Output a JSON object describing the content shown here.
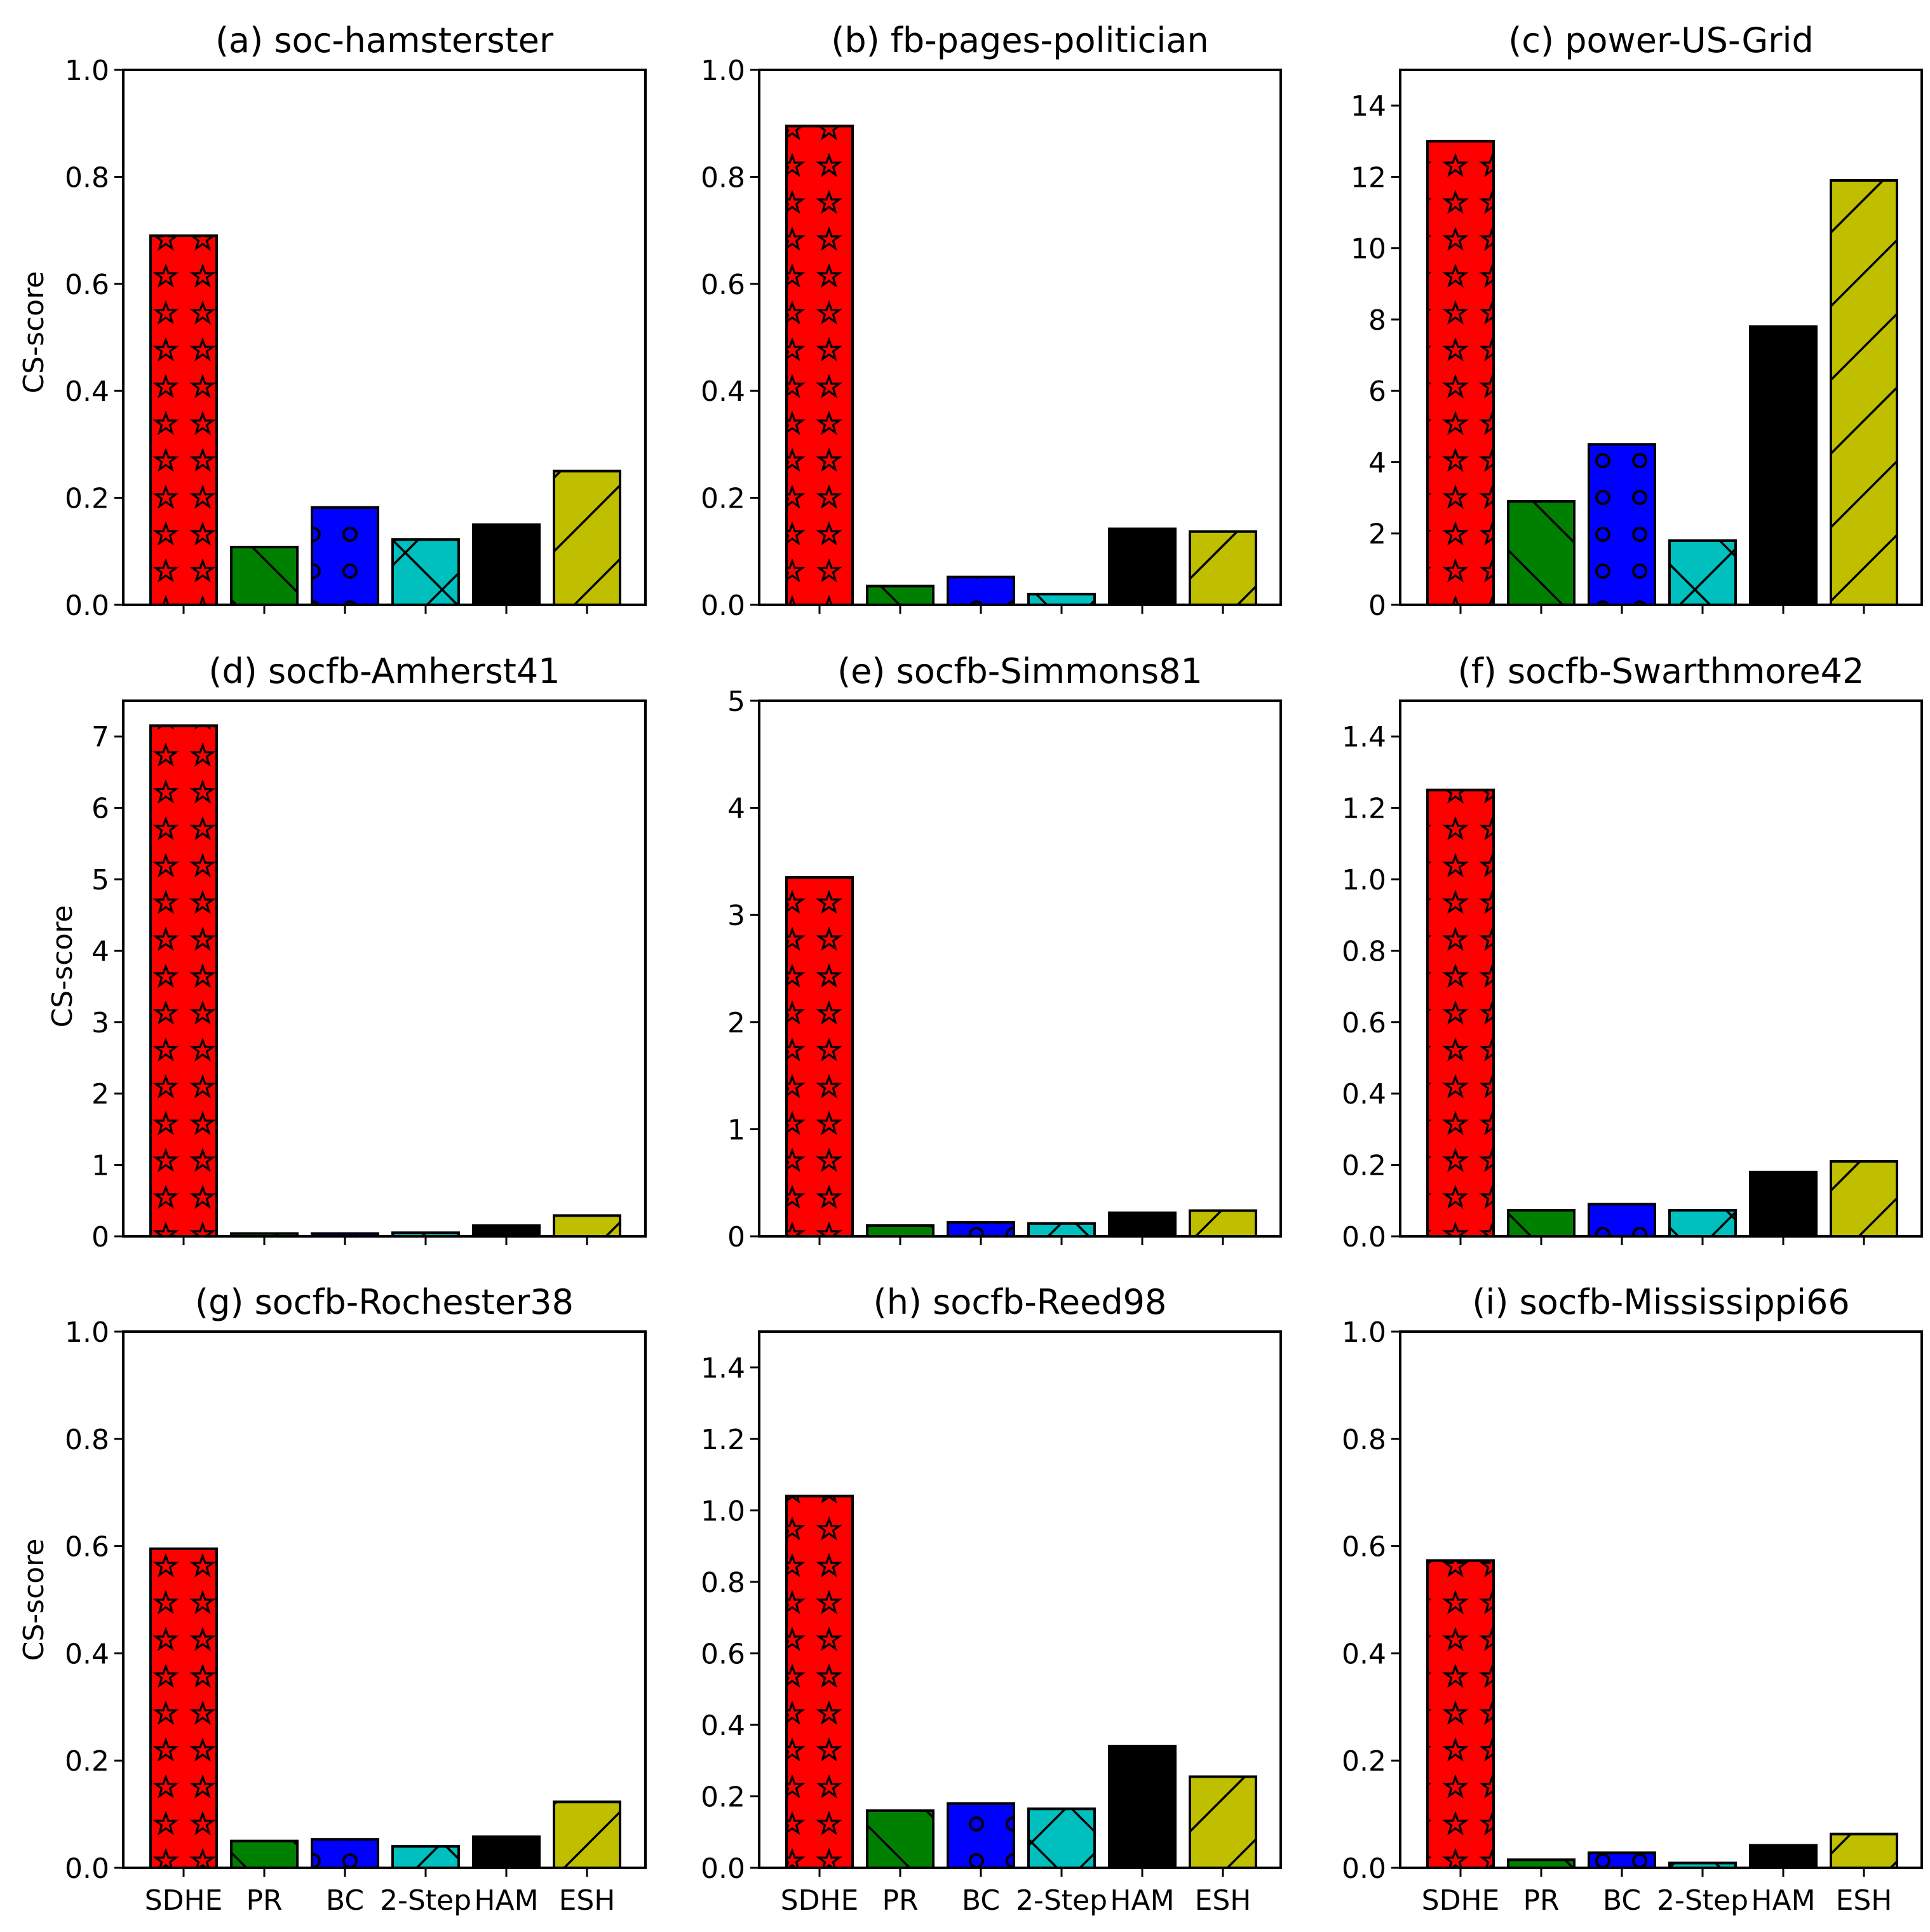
{
  "figure": {
    "ylabel": "CS-score",
    "bar_labels": [
      "SDHE",
      "PR",
      "BC",
      "2-Step",
      "HAM",
      "ESH"
    ],
    "series_colors": {
      "SDHE": "#ff0000",
      "PR": "#008000",
      "BC": "#0000ff",
      "2-Step": "#00bfbf",
      "HAM": "#000000",
      "ESH": "#bfbf00"
    },
    "series_hatches": {
      "SDHE": "star",
      "PR": "backslash",
      "BC": "circle",
      "2-Step": "cross",
      "HAM": "none",
      "ESH": "slash"
    }
  },
  "chart_data": [
    {
      "type": "bar",
      "title": "(a) soc-hamsterster",
      "categories": [
        "SDHE",
        "PR",
        "BC",
        "2-Step",
        "HAM",
        "ESH"
      ],
      "values": [
        0.69,
        0.108,
        0.182,
        0.122,
        0.15,
        0.25
      ],
      "ylim": [
        0,
        1.0
      ],
      "yticks": [
        0.0,
        0.2,
        0.4,
        0.6,
        0.8,
        1.0
      ],
      "ytick_labels": [
        "0.0",
        "0.2",
        "0.4",
        "0.6",
        "0.8",
        "1.0"
      ],
      "xlabel": "",
      "ylabel": "CS-score"
    },
    {
      "type": "bar",
      "title": "(b) fb-pages-politician",
      "categories": [
        "SDHE",
        "PR",
        "BC",
        "2-Step",
        "HAM",
        "ESH"
      ],
      "values": [
        0.895,
        0.035,
        0.052,
        0.02,
        0.142,
        0.137
      ],
      "ylim": [
        0,
        1.0
      ],
      "yticks": [
        0.0,
        0.2,
        0.4,
        0.6,
        0.8,
        1.0
      ],
      "ytick_labels": [
        "0.0",
        "0.2",
        "0.4",
        "0.6",
        "0.8",
        "1.0"
      ],
      "xlabel": "",
      "ylabel": ""
    },
    {
      "type": "bar",
      "title": "(c) power-US-Grid",
      "categories": [
        "SDHE",
        "PR",
        "BC",
        "2-Step",
        "HAM",
        "ESH"
      ],
      "values": [
        13.0,
        2.9,
        4.5,
        1.8,
        7.8,
        11.9
      ],
      "ylim": [
        0,
        15
      ],
      "yticks": [
        0,
        2,
        4,
        6,
        8,
        10,
        12,
        14
      ],
      "ytick_labels": [
        "0",
        "2",
        "4",
        "6",
        "8",
        "10",
        "12",
        "14"
      ],
      "xlabel": "",
      "ylabel": ""
    },
    {
      "type": "bar",
      "title": "(d) socfb-Amherst41",
      "categories": [
        "SDHE",
        "PR",
        "BC",
        "2-Step",
        "HAM",
        "ESH"
      ],
      "values": [
        7.15,
        0.04,
        0.04,
        0.05,
        0.15,
        0.29
      ],
      "ylim": [
        0,
        7.5
      ],
      "yticks": [
        0,
        1,
        2,
        3,
        4,
        5,
        6,
        7
      ],
      "ytick_labels": [
        "0",
        "1",
        "2",
        "3",
        "4",
        "5",
        "6",
        "7"
      ],
      "xlabel": "",
      "ylabel": "CS-score"
    },
    {
      "type": "bar",
      "title": "(e) socfb-Simmons81",
      "categories": [
        "SDHE",
        "PR",
        "BC",
        "2-Step",
        "HAM",
        "ESH"
      ],
      "values": [
        3.35,
        0.1,
        0.13,
        0.12,
        0.22,
        0.24
      ],
      "ylim": [
        0,
        5
      ],
      "yticks": [
        0,
        1,
        2,
        3,
        4,
        5
      ],
      "ytick_labels": [
        "0",
        "1",
        "2",
        "3",
        "4",
        "5"
      ],
      "xlabel": "",
      "ylabel": ""
    },
    {
      "type": "bar",
      "title": "(f) socfb-Swarthmore42",
      "categories": [
        "SDHE",
        "PR",
        "BC",
        "2-Step",
        "HAM",
        "ESH"
      ],
      "values": [
        1.25,
        0.073,
        0.09,
        0.073,
        0.18,
        0.21
      ],
      "ylim": [
        0,
        1.5
      ],
      "yticks": [
        0.0,
        0.2,
        0.4,
        0.6,
        0.8,
        1.0,
        1.2,
        1.4
      ],
      "ytick_labels": [
        "0.0",
        "0.2",
        "0.4",
        "0.6",
        "0.8",
        "1.0",
        "1.2",
        "1.4"
      ],
      "xlabel": "",
      "ylabel": ""
    },
    {
      "type": "bar",
      "title": "(g) socfb-Rochester38",
      "categories": [
        "SDHE",
        "PR",
        "BC",
        "2-Step",
        "HAM",
        "ESH"
      ],
      "values": [
        0.595,
        0.05,
        0.053,
        0.04,
        0.058,
        0.123
      ],
      "ylim": [
        0,
        1.0
      ],
      "yticks": [
        0.0,
        0.2,
        0.4,
        0.6,
        0.8,
        1.0
      ],
      "ytick_labels": [
        "0.0",
        "0.2",
        "0.4",
        "0.6",
        "0.8",
        "1.0"
      ],
      "xlabel": "",
      "ylabel": "CS-score"
    },
    {
      "type": "bar",
      "title": "(h) socfb-Reed98",
      "categories": [
        "SDHE",
        "PR",
        "BC",
        "2-Step",
        "HAM",
        "ESH"
      ],
      "values": [
        1.04,
        0.16,
        0.18,
        0.165,
        0.34,
        0.255
      ],
      "ylim": [
        0,
        1.5
      ],
      "yticks": [
        0.0,
        0.2,
        0.4,
        0.6,
        0.8,
        1.0,
        1.2,
        1.4
      ],
      "ytick_labels": [
        "0.0",
        "0.2",
        "0.4",
        "0.6",
        "0.8",
        "1.0",
        "1.2",
        "1.4"
      ],
      "xlabel": "",
      "ylabel": ""
    },
    {
      "type": "bar",
      "title": "(i) socfb-Mississippi66",
      "categories": [
        "SDHE",
        "PR",
        "BC",
        "2-Step",
        "HAM",
        "ESH"
      ],
      "values": [
        0.573,
        0.015,
        0.028,
        0.009,
        0.042,
        0.063
      ],
      "ylim": [
        0,
        1.0
      ],
      "yticks": [
        0.0,
        0.2,
        0.4,
        0.6,
        0.8,
        1.0
      ],
      "ytick_labels": [
        "0.0",
        "0.2",
        "0.4",
        "0.6",
        "0.8",
        "1.0"
      ],
      "xlabel": "",
      "ylabel": ""
    }
  ]
}
